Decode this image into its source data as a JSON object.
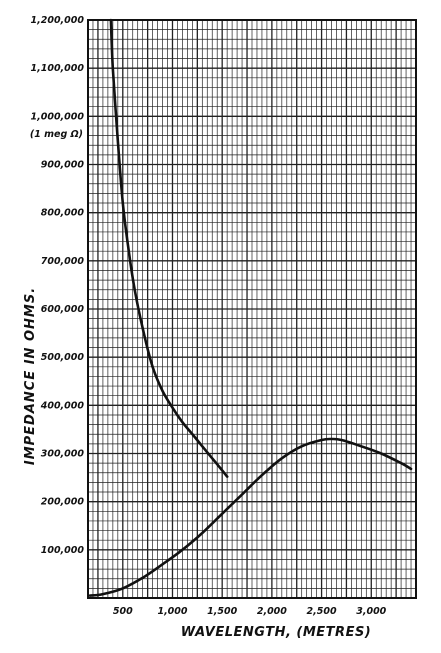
{
  "chart_data": {
    "type": "line",
    "title": "",
    "xlabel": "WAVELENGTH, (METRES)",
    "ylabel": "IMPEDANCE IN OHMS.",
    "xlim": [
      150,
      3450
    ],
    "ylim": [
      0,
      1200000
    ],
    "x_ticks": [
      {
        "value": 500,
        "label": "500"
      },
      {
        "value": 1000,
        "label": "1,000"
      },
      {
        "value": 1500,
        "label": "1,500"
      },
      {
        "value": 2000,
        "label": "2,000"
      },
      {
        "value": 2500,
        "label": "2,500"
      },
      {
        "value": 3000,
        "label": "3,000"
      }
    ],
    "y_ticks": [
      {
        "value": 100000,
        "label": "100,000"
      },
      {
        "value": 200000,
        "label": "200,000"
      },
      {
        "value": 300000,
        "label": "300,000"
      },
      {
        "value": 400000,
        "label": "400,000"
      },
      {
        "value": 500000,
        "label": "500,000"
      },
      {
        "value": 600000,
        "label": "600,000"
      },
      {
        "value": 700000,
        "label": "700,000"
      },
      {
        "value": 800000,
        "label": "800,000"
      },
      {
        "value": 900000,
        "label": "900,000"
      },
      {
        "value": 1000000,
        "label": "1,000,000"
      },
      {
        "value": 1100000,
        "label": "1,100,000"
      },
      {
        "value": 1200000,
        "label": "1,200,000"
      }
    ],
    "annotations": [
      {
        "text": "(1 meg Ω)",
        "y": 1000000
      }
    ],
    "grid": true,
    "series": [
      {
        "x": [
          380,
          400,
          450,
          500,
          560,
          620,
          700,
          800,
          900,
          1000,
          1100,
          1200,
          1300,
          1400,
          1500,
          1550
        ],
        "values": [
          1200000,
          1100000,
          950000,
          820000,
          720000,
          640000,
          560000,
          480000,
          430000,
          395000,
          365000,
          340000,
          315000,
          290000,
          265000,
          252000
        ],
        "color": "#111111"
      },
      {
        "x": [
          170,
          300,
          500,
          700,
          900,
          1100,
          1300,
          1500,
          1700,
          1900,
          2100,
          2300,
          2500,
          2600,
          2700,
          2900,
          3100,
          3300,
          3400
        ],
        "values": [
          5000,
          8000,
          20000,
          42000,
          70000,
          100000,
          135000,
          175000,
          215000,
          255000,
          290000,
          315000,
          328000,
          330000,
          328000,
          315000,
          300000,
          280000,
          268000
        ],
        "color": "#111111"
      }
    ]
  }
}
